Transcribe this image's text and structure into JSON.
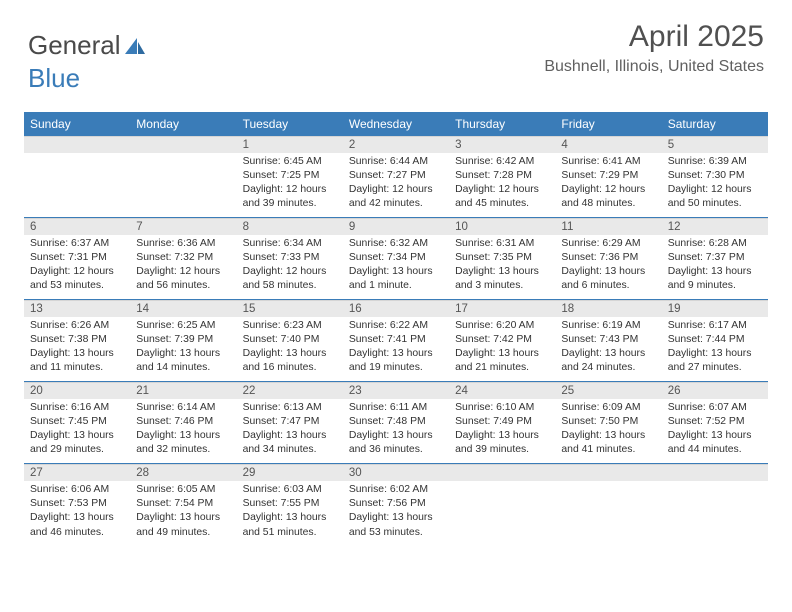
{
  "logo": {
    "text1": "General",
    "text2": "Blue"
  },
  "title": "April 2025",
  "subtitle": "Bushnell, Illinois, United States",
  "colors": {
    "header_bar": "#3a7cb8",
    "daynum_bg": "#e9e9e9",
    "text": "#333333",
    "title_color": "#505050"
  },
  "weekdays": [
    "Sunday",
    "Monday",
    "Tuesday",
    "Wednesday",
    "Thursday",
    "Friday",
    "Saturday"
  ],
  "weeks": [
    [
      {
        "n": "",
        "empty": true
      },
      {
        "n": "",
        "empty": true
      },
      {
        "n": "1",
        "sr": "Sunrise: 6:45 AM",
        "ss": "Sunset: 7:25 PM",
        "dl": "Daylight: 12 hours and 39 minutes."
      },
      {
        "n": "2",
        "sr": "Sunrise: 6:44 AM",
        "ss": "Sunset: 7:27 PM",
        "dl": "Daylight: 12 hours and 42 minutes."
      },
      {
        "n": "3",
        "sr": "Sunrise: 6:42 AM",
        "ss": "Sunset: 7:28 PM",
        "dl": "Daylight: 12 hours and 45 minutes."
      },
      {
        "n": "4",
        "sr": "Sunrise: 6:41 AM",
        "ss": "Sunset: 7:29 PM",
        "dl": "Daylight: 12 hours and 48 minutes."
      },
      {
        "n": "5",
        "sr": "Sunrise: 6:39 AM",
        "ss": "Sunset: 7:30 PM",
        "dl": "Daylight: 12 hours and 50 minutes."
      }
    ],
    [
      {
        "n": "6",
        "sr": "Sunrise: 6:37 AM",
        "ss": "Sunset: 7:31 PM",
        "dl": "Daylight: 12 hours and 53 minutes."
      },
      {
        "n": "7",
        "sr": "Sunrise: 6:36 AM",
        "ss": "Sunset: 7:32 PM",
        "dl": "Daylight: 12 hours and 56 minutes."
      },
      {
        "n": "8",
        "sr": "Sunrise: 6:34 AM",
        "ss": "Sunset: 7:33 PM",
        "dl": "Daylight: 12 hours and 58 minutes."
      },
      {
        "n": "9",
        "sr": "Sunrise: 6:32 AM",
        "ss": "Sunset: 7:34 PM",
        "dl": "Daylight: 13 hours and 1 minute."
      },
      {
        "n": "10",
        "sr": "Sunrise: 6:31 AM",
        "ss": "Sunset: 7:35 PM",
        "dl": "Daylight: 13 hours and 3 minutes."
      },
      {
        "n": "11",
        "sr": "Sunrise: 6:29 AM",
        "ss": "Sunset: 7:36 PM",
        "dl": "Daylight: 13 hours and 6 minutes."
      },
      {
        "n": "12",
        "sr": "Sunrise: 6:28 AM",
        "ss": "Sunset: 7:37 PM",
        "dl": "Daylight: 13 hours and 9 minutes."
      }
    ],
    [
      {
        "n": "13",
        "sr": "Sunrise: 6:26 AM",
        "ss": "Sunset: 7:38 PM",
        "dl": "Daylight: 13 hours and 11 minutes."
      },
      {
        "n": "14",
        "sr": "Sunrise: 6:25 AM",
        "ss": "Sunset: 7:39 PM",
        "dl": "Daylight: 13 hours and 14 minutes."
      },
      {
        "n": "15",
        "sr": "Sunrise: 6:23 AM",
        "ss": "Sunset: 7:40 PM",
        "dl": "Daylight: 13 hours and 16 minutes."
      },
      {
        "n": "16",
        "sr": "Sunrise: 6:22 AM",
        "ss": "Sunset: 7:41 PM",
        "dl": "Daylight: 13 hours and 19 minutes."
      },
      {
        "n": "17",
        "sr": "Sunrise: 6:20 AM",
        "ss": "Sunset: 7:42 PM",
        "dl": "Daylight: 13 hours and 21 minutes."
      },
      {
        "n": "18",
        "sr": "Sunrise: 6:19 AM",
        "ss": "Sunset: 7:43 PM",
        "dl": "Daylight: 13 hours and 24 minutes."
      },
      {
        "n": "19",
        "sr": "Sunrise: 6:17 AM",
        "ss": "Sunset: 7:44 PM",
        "dl": "Daylight: 13 hours and 27 minutes."
      }
    ],
    [
      {
        "n": "20",
        "sr": "Sunrise: 6:16 AM",
        "ss": "Sunset: 7:45 PM",
        "dl": "Daylight: 13 hours and 29 minutes."
      },
      {
        "n": "21",
        "sr": "Sunrise: 6:14 AM",
        "ss": "Sunset: 7:46 PM",
        "dl": "Daylight: 13 hours and 32 minutes."
      },
      {
        "n": "22",
        "sr": "Sunrise: 6:13 AM",
        "ss": "Sunset: 7:47 PM",
        "dl": "Daylight: 13 hours and 34 minutes."
      },
      {
        "n": "23",
        "sr": "Sunrise: 6:11 AM",
        "ss": "Sunset: 7:48 PM",
        "dl": "Daylight: 13 hours and 36 minutes."
      },
      {
        "n": "24",
        "sr": "Sunrise: 6:10 AM",
        "ss": "Sunset: 7:49 PM",
        "dl": "Daylight: 13 hours and 39 minutes."
      },
      {
        "n": "25",
        "sr": "Sunrise: 6:09 AM",
        "ss": "Sunset: 7:50 PM",
        "dl": "Daylight: 13 hours and 41 minutes."
      },
      {
        "n": "26",
        "sr": "Sunrise: 6:07 AM",
        "ss": "Sunset: 7:52 PM",
        "dl": "Daylight: 13 hours and 44 minutes."
      }
    ],
    [
      {
        "n": "27",
        "sr": "Sunrise: 6:06 AM",
        "ss": "Sunset: 7:53 PM",
        "dl": "Daylight: 13 hours and 46 minutes."
      },
      {
        "n": "28",
        "sr": "Sunrise: 6:05 AM",
        "ss": "Sunset: 7:54 PM",
        "dl": "Daylight: 13 hours and 49 minutes."
      },
      {
        "n": "29",
        "sr": "Sunrise: 6:03 AM",
        "ss": "Sunset: 7:55 PM",
        "dl": "Daylight: 13 hours and 51 minutes."
      },
      {
        "n": "30",
        "sr": "Sunrise: 6:02 AM",
        "ss": "Sunset: 7:56 PM",
        "dl": "Daylight: 13 hours and 53 minutes."
      },
      {
        "n": "",
        "empty": true
      },
      {
        "n": "",
        "empty": true
      },
      {
        "n": "",
        "empty": true
      }
    ]
  ]
}
